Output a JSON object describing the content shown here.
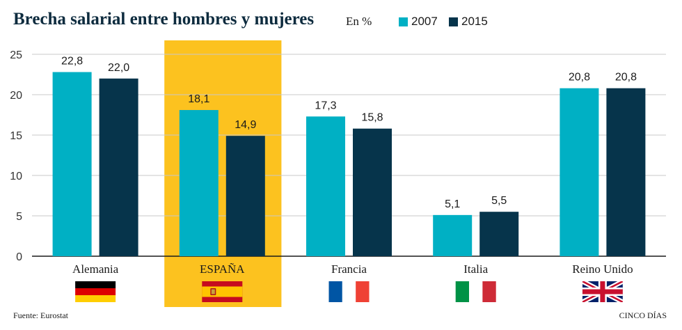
{
  "title": "Brecha salarial entre hombres y mujeres",
  "unit": "En %",
  "source": "Fuente: Eurostat",
  "brand": "CINCO DÍAS",
  "colors": {
    "s2007": "#00b0c4",
    "s2015": "#06344b",
    "highlight": "#fcc21f",
    "grid": "#c8c8c8",
    "axis": "#1a1a1a"
  },
  "chart_data": {
    "type": "bar",
    "title": "Brecha salarial entre hombres y mujeres",
    "ylabel": "En %",
    "xlabel": "",
    "ylim": [
      0,
      25
    ],
    "yticks": [
      0,
      5,
      10,
      15,
      20,
      25
    ],
    "grid": true,
    "legend_position": "top",
    "highlight_category": "ESPAÑA",
    "categories": [
      "Alemania",
      "ESPAÑA",
      "Francia",
      "Italia",
      "Reino Unido"
    ],
    "flags": [
      "flag-germany",
      "flag-spain",
      "flag-france",
      "flag-italy",
      "flag-uk"
    ],
    "series": [
      {
        "name": "2007",
        "values": [
          22.8,
          18.1,
          17.3,
          5.1,
          20.8
        ],
        "labels": [
          "22,8",
          "18,1",
          "17,3",
          "5,1",
          "20,8"
        ]
      },
      {
        "name": "2015",
        "values": [
          22.0,
          14.9,
          15.8,
          5.5,
          20.8
        ],
        "labels": [
          "22,0",
          "14,9",
          "15,8",
          "5,5",
          "20,8"
        ]
      }
    ]
  }
}
